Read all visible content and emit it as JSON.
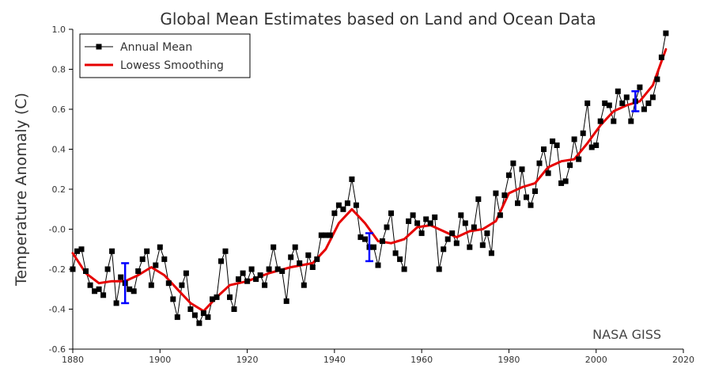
{
  "chart_data": {
    "type": "line",
    "title": "Global Mean Estimates based on Land and Ocean Data",
    "xlabel": "",
    "ylabel": "Temperature Anomaly (C)",
    "credit": "NASA GISS",
    "xlim": [
      1880,
      2020
    ],
    "ylim": [
      -0.6,
      1.0
    ],
    "xticks": [
      1880,
      1900,
      1920,
      1940,
      1960,
      1980,
      2000,
      2020
    ],
    "yticks": [
      {
        "value": 1.0,
        "label": "1.0"
      },
      {
        "value": 0.8,
        "label": "0.8"
      },
      {
        "value": 0.6,
        "label": "0.6"
      },
      {
        "value": 0.4,
        "label": "0.4"
      },
      {
        "value": 0.2,
        "label": "0.2"
      },
      {
        "value": 0.0,
        "label": "-0.0"
      },
      {
        "value": -0.2,
        "label": "-0.2"
      },
      {
        "value": -0.4,
        "label": "-0.4"
      },
      {
        "value": -0.6,
        "label": "-0.6"
      }
    ],
    "legend": {
      "placement": "top-left"
    },
    "colors": {
      "annual": "#000000",
      "lowess": "#e60000",
      "errorbar": "#0000ff"
    },
    "series": [
      {
        "name": "Annual Mean",
        "x": [
          1880,
          1881,
          1882,
          1883,
          1884,
          1885,
          1886,
          1887,
          1888,
          1889,
          1890,
          1891,
          1892,
          1893,
          1894,
          1895,
          1896,
          1897,
          1898,
          1899,
          1900,
          1901,
          1902,
          1903,
          1904,
          1905,
          1906,
          1907,
          1908,
          1909,
          1910,
          1911,
          1912,
          1913,
          1914,
          1915,
          1916,
          1917,
          1918,
          1919,
          1920,
          1921,
          1922,
          1923,
          1924,
          1925,
          1926,
          1927,
          1928,
          1929,
          1930,
          1931,
          1932,
          1933,
          1934,
          1935,
          1936,
          1937,
          1938,
          1939,
          1940,
          1941,
          1942,
          1943,
          1944,
          1945,
          1946,
          1947,
          1948,
          1949,
          1950,
          1951,
          1952,
          1953,
          1954,
          1955,
          1956,
          1957,
          1958,
          1959,
          1960,
          1961,
          1962,
          1963,
          1964,
          1965,
          1966,
          1967,
          1968,
          1969,
          1970,
          1971,
          1972,
          1973,
          1974,
          1975,
          1976,
          1977,
          1978,
          1979,
          1980,
          1981,
          1982,
          1983,
          1984,
          1985,
          1986,
          1987,
          1988,
          1989,
          1990,
          1991,
          1992,
          1993,
          1994,
          1995,
          1996,
          1997,
          1998,
          1999,
          2000,
          2001,
          2002,
          2003,
          2004,
          2005,
          2006,
          2007,
          2008,
          2009,
          2010,
          2011,
          2012,
          2013,
          2014,
          2015,
          2016
        ],
        "values": [
          -0.2,
          -0.11,
          -0.1,
          -0.21,
          -0.28,
          -0.31,
          -0.3,
          -0.33,
          -0.2,
          -0.11,
          -0.37,
          -0.24,
          -0.27,
          -0.3,
          -0.31,
          -0.21,
          -0.15,
          -0.11,
          -0.28,
          -0.18,
          -0.09,
          -0.15,
          -0.27,
          -0.35,
          -0.44,
          -0.28,
          -0.22,
          -0.4,
          -0.43,
          -0.47,
          -0.42,
          -0.44,
          -0.35,
          -0.34,
          -0.16,
          -0.11,
          -0.34,
          -0.4,
          -0.25,
          -0.22,
          -0.26,
          -0.2,
          -0.25,
          -0.23,
          -0.28,
          -0.2,
          -0.09,
          -0.2,
          -0.21,
          -0.36,
          -0.14,
          -0.09,
          -0.17,
          -0.28,
          -0.13,
          -0.19,
          -0.15,
          -0.03,
          -0.03,
          -0.03,
          0.08,
          0.12,
          0.1,
          0.13,
          0.25,
          0.12,
          -0.04,
          -0.05,
          -0.09,
          -0.09,
          -0.18,
          -0.06,
          0.01,
          0.08,
          -0.12,
          -0.15,
          -0.2,
          0.04,
          0.07,
          0.03,
          -0.02,
          0.05,
          0.03,
          0.06,
          -0.2,
          -0.1,
          -0.05,
          -0.02,
          -0.07,
          0.07,
          0.03,
          -0.09,
          0.01,
          0.15,
          -0.08,
          -0.02,
          -0.12,
          0.18,
          0.07,
          0.17,
          0.27,
          0.33,
          0.13,
          0.3,
          0.16,
          0.12,
          0.19,
          0.33,
          0.4,
          0.28,
          0.44,
          0.42,
          0.23,
          0.24,
          0.32,
          0.45,
          0.35,
          0.48,
          0.63,
          0.41,
          0.42,
          0.54,
          0.63,
          0.62,
          0.54,
          0.69,
          0.63,
          0.66,
          0.54,
          0.64,
          0.71,
          0.6,
          0.63,
          0.66,
          0.75,
          0.86,
          0.98
        ]
      },
      {
        "name": "Lowess Smoothing",
        "x": [
          1880,
          1883,
          1886,
          1889,
          1892,
          1895,
          1898,
          1901,
          1904,
          1907,
          1910,
          1913,
          1916,
          1920,
          1925,
          1930,
          1935,
          1938,
          1941,
          1944,
          1947,
          1950,
          1953,
          1956,
          1959,
          1962,
          1965,
          1968,
          1971,
          1974,
          1977,
          1980,
          1983,
          1986,
          1989,
          1992,
          1995,
          1998,
          2001,
          2004,
          2007,
          2010,
          2013,
          2016
        ],
        "values": [
          -0.12,
          -0.22,
          -0.27,
          -0.26,
          -0.26,
          -0.23,
          -0.19,
          -0.23,
          -0.3,
          -0.37,
          -0.41,
          -0.34,
          -0.28,
          -0.26,
          -0.22,
          -0.19,
          -0.17,
          -0.1,
          0.03,
          0.1,
          0.03,
          -0.06,
          -0.07,
          -0.05,
          0.01,
          0.02,
          -0.01,
          -0.04,
          -0.01,
          0.0,
          0.04,
          0.18,
          0.21,
          0.23,
          0.31,
          0.34,
          0.35,
          0.43,
          0.52,
          0.59,
          0.62,
          0.64,
          0.72,
          0.9
        ]
      }
    ],
    "error_bars": [
      {
        "x": 1892,
        "y": -0.27,
        "low": -0.37,
        "high": -0.17
      },
      {
        "x": 1948,
        "y": -0.09,
        "low": -0.16,
        "high": -0.02
      },
      {
        "x": 2009,
        "y": 0.64,
        "low": 0.59,
        "high": 0.69
      }
    ]
  }
}
